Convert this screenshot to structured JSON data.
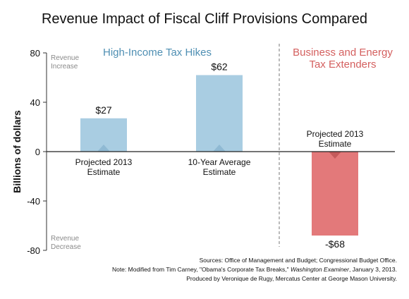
{
  "chart_data": {
    "type": "bar",
    "title": "Revenue Impact of Fiscal Cliff Provisions Compared",
    "ylabel": "Billions of dollars",
    "xlabel": "",
    "ylim": [
      -80,
      80
    ],
    "yticks": [
      80,
      40,
      0,
      -40,
      -80
    ],
    "grid": false,
    "corner_labels": {
      "top": [
        "Revenue",
        "Increase"
      ],
      "bottom": [
        "Revenue",
        "Decrease"
      ]
    },
    "groups": [
      {
        "name": "High-Income Tax Hikes",
        "color": "#4f8fb3",
        "bars": [
          {
            "label": [
              "Projected 2013",
              "Estimate"
            ],
            "value": 27,
            "value_label": "$27",
            "color": "#a9cde2"
          },
          {
            "label": [
              "10-Year Average",
              "Estimate"
            ],
            "value": 62,
            "value_label": "$62",
            "color": "#a9cde2"
          }
        ]
      },
      {
        "name": "Business and Energy Tax Extenders",
        "name_lines": [
          "Business and Energy",
          "Tax Extenders"
        ],
        "color": "#d4605f",
        "bars": [
          {
            "label": [
              "Projected 2013",
              "Estimate"
            ],
            "value": -68,
            "value_label": "-$68",
            "color": "#e3797a"
          }
        ]
      }
    ],
    "notes": [
      "Sources: Office of Management and Budget; Congressional Budget Office.",
      "Note: Modified from Tim Carney, \"Obama's Corporate Tax Breaks,\" Washington Examiner, January 3, 2013.",
      "Produced by Veronique de Rugy, Mercatus Center at George Mason University."
    ]
  }
}
